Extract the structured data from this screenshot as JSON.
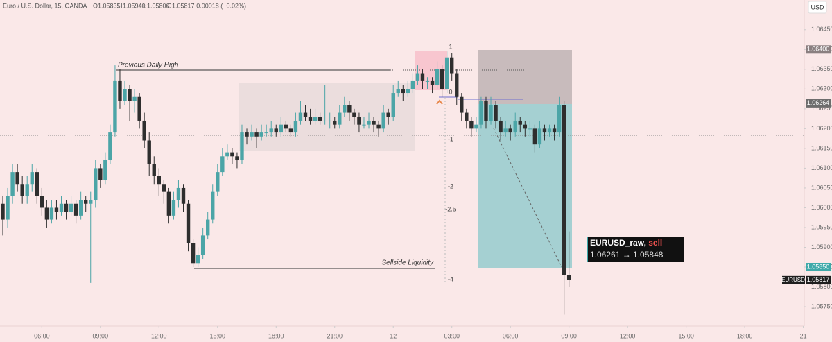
{
  "header": {
    "symbol": "Euro / U.S. Dollar, 15, OANDA",
    "o_label": "O",
    "o": "1.05835",
    "h_label": "H",
    "h": "1.05940",
    "l_label": "L",
    "l": "1.05806",
    "c_label": "C",
    "c": "1.05817",
    "change": "−0.00018 (−0.02%)",
    "currency": "USD"
  },
  "chart_data": {
    "type": "candlestick",
    "up_color": "#4ba5a7",
    "down_color": "#2e2e2e",
    "xlim": [
      -0.57,
      164.2
    ],
    "ylim": [
      1.05701,
      1.06525
    ],
    "xticks": [
      {
        "value": 8,
        "label": "06:00"
      },
      {
        "value": 20,
        "label": "09:00"
      },
      {
        "value": 32,
        "label": "12:00"
      },
      {
        "value": 44,
        "label": "15:00"
      },
      {
        "value": 56,
        "label": "18:00"
      },
      {
        "value": 68,
        "label": "21:00"
      },
      {
        "value": 80,
        "label": "12"
      },
      {
        "value": 92,
        "label": "03:00"
      },
      {
        "value": 104,
        "label": "06:00"
      },
      {
        "value": 116,
        "label": "09:00"
      },
      {
        "value": 128,
        "label": "12:00"
      },
      {
        "value": 140,
        "label": "15:00"
      },
      {
        "value": 152,
        "label": "18:00"
      },
      {
        "value": 164,
        "label": "21"
      }
    ],
    "yticks": [
      {
        "value": 1.0575,
        "label": "1.05750"
      },
      {
        "value": 1.058,
        "label": "1.05800"
      },
      {
        "value": 1.0585,
        "label": "1.05850"
      },
      {
        "value": 1.059,
        "label": "1.05900"
      },
      {
        "value": 1.0595,
        "label": "1.05950"
      },
      {
        "value": 1.06,
        "label": "1.06000"
      },
      {
        "value": 1.0605,
        "label": "1.06050"
      },
      {
        "value": 1.061,
        "label": "1.06100"
      },
      {
        "value": 1.0615,
        "label": "1.06150"
      },
      {
        "value": 1.062,
        "label": "1.06200"
      },
      {
        "value": 1.0625,
        "label": "1.06250"
      },
      {
        "value": 1.063,
        "label": "1.06300"
      },
      {
        "value": 1.0635,
        "label": "1.06350"
      },
      {
        "value": 1.064,
        "label": "1.06400"
      },
      {
        "value": 1.0645,
        "label": "1.06450"
      }
    ],
    "price_badges": [
      {
        "value": 1.064,
        "label": "1.06400",
        "color": "#8a7f80"
      },
      {
        "value": 1.06264,
        "label": "1.06264",
        "color": "#6d6d6d"
      },
      {
        "value": 1.0585,
        "label": "1.05850",
        "color": "#3fa9a9"
      },
      {
        "value": 1.05817,
        "label": "1.05817",
        "color": "#1e1e1e",
        "name": "EURUSD"
      }
    ],
    "annotations": {
      "prev_high": "Previous Daily High",
      "sellside": "Sellside Liquidity",
      "fib": [
        "1",
        "0",
        "-1",
        "-2",
        "-2.5",
        "-4"
      ],
      "trade_name": "EURUSD_raw, ",
      "trade_side": "sell",
      "trade_prices": "1.06261 → 1.05848"
    },
    "candles": [
      [
        1.0601,
        1.0603,
        1.0593,
        1.0597
      ],
      [
        1.0597,
        1.0605,
        1.0595,
        1.0603
      ],
      [
        1.0603,
        1.0611,
        1.0601,
        1.0609
      ],
      [
        1.0609,
        1.0611,
        1.0604,
        1.0606
      ],
      [
        1.0606,
        1.0608,
        1.0601,
        1.0603
      ],
      [
        1.0603,
        1.0608,
        1.0601,
        1.0606
      ],
      [
        1.0606,
        1.0611,
        1.0604,
        1.0609
      ],
      [
        1.0609,
        1.061,
        1.0601,
        1.0603
      ],
      [
        1.0603,
        1.0605,
        1.0598,
        1.06
      ],
      [
        1.06,
        1.0602,
        1.0595,
        1.0597
      ],
      [
        1.0597,
        1.0602,
        1.0596,
        1.06
      ],
      [
        1.06,
        1.0602,
        1.0597,
        1.0599
      ],
      [
        1.0599,
        1.0603,
        1.0598,
        1.0601
      ],
      [
        1.0601,
        1.0602,
        1.0597,
        1.0599
      ],
      [
        1.0599,
        1.0603,
        1.0598,
        1.0601
      ],
      [
        1.0601,
        1.0602,
        1.0596,
        1.0598
      ],
      [
        1.0598,
        1.0604,
        1.0597,
        1.0602
      ],
      [
        1.0602,
        1.0603,
        1.0599,
        1.0601
      ],
      [
        1.0601,
        1.0604,
        1.0581,
        1.0602
      ],
      [
        1.0602,
        1.0612,
        1.06,
        1.061
      ],
      [
        1.061,
        1.0611,
        1.0605,
        1.0607
      ],
      [
        1.0607,
        1.0614,
        1.0606,
        1.0612
      ],
      [
        1.0612,
        1.0621,
        1.0611,
        1.0619
      ],
      [
        1.0619,
        1.0636,
        1.0618,
        1.0632
      ],
      [
        1.0632,
        1.0635,
        1.0625,
        1.0627
      ],
      [
        1.0627,
        1.0632,
        1.0626,
        1.063
      ],
      [
        1.063,
        1.0631,
        1.0622,
        1.0627
      ],
      [
        1.0627,
        1.063,
        1.0624,
        1.0628
      ],
      [
        1.0628,
        1.0629,
        1.062,
        1.0622
      ],
      [
        1.0622,
        1.0624,
        1.0615,
        1.0617
      ],
      [
        1.0617,
        1.0619,
        1.0608,
        1.0611
      ],
      [
        1.0611,
        1.0613,
        1.0606,
        1.0608
      ],
      [
        1.0608,
        1.061,
        1.0603,
        1.0606
      ],
      [
        1.0606,
        1.0607,
        1.0601,
        1.0604
      ],
      [
        1.0604,
        1.0605,
        1.0596,
        1.0598
      ],
      [
        1.0598,
        1.0604,
        1.0597,
        1.0602
      ],
      [
        1.0602,
        1.0607,
        1.06,
        1.0605
      ],
      [
        1.0605,
        1.0606,
        1.0599,
        1.0601
      ],
      [
        1.0601,
        1.0602,
        1.0589,
        1.0591
      ],
      [
        1.0591,
        1.0592,
        1.0585,
        1.0586
      ],
      [
        1.0586,
        1.059,
        1.0585,
        1.0588
      ],
      [
        1.0588,
        1.0595,
        1.0587,
        1.0593
      ],
      [
        1.0593,
        1.0599,
        1.0592,
        1.0597
      ],
      [
        1.0597,
        1.0606,
        1.0596,
        1.0604
      ],
      [
        1.0604,
        1.0611,
        1.0603,
        1.0609
      ],
      [
        1.0609,
        1.0615,
        1.0608,
        1.0613
      ],
      [
        1.0613,
        1.0616,
        1.0612,
        1.0614
      ],
      [
        1.0614,
        1.0615,
        1.0611,
        1.0613
      ],
      [
        1.0613,
        1.0614,
        1.061,
        1.0612
      ],
      [
        1.0612,
        1.0621,
        1.0611,
        1.0619
      ],
      [
        1.0619,
        1.062,
        1.0616,
        1.0618
      ],
      [
        1.0618,
        1.0621,
        1.0617,
        1.0619
      ],
      [
        1.0619,
        1.062,
        1.0615,
        1.0618
      ],
      [
        1.0618,
        1.0621,
        1.0617,
        1.0619
      ],
      [
        1.0619,
        1.0621,
        1.0618,
        1.0619
      ],
      [
        1.0619,
        1.0622,
        1.0618,
        1.062
      ],
      [
        1.062,
        1.0621,
        1.0618,
        1.0619
      ],
      [
        1.0619,
        1.0623,
        1.0618,
        1.0621
      ],
      [
        1.0621,
        1.0622,
        1.0619,
        1.062
      ],
      [
        1.062,
        1.0621,
        1.0618,
        1.0619
      ],
      [
        1.0619,
        1.0624,
        1.0618,
        1.0622
      ],
      [
        1.0622,
        1.0627,
        1.0621,
        1.0624
      ],
      [
        1.0624,
        1.0626,
        1.0622,
        1.0623
      ],
      [
        1.0623,
        1.0625,
        1.0621,
        1.0622
      ],
      [
        1.0622,
        1.0625,
        1.0621,
        1.0623
      ],
      [
        1.0623,
        1.0624,
        1.0621,
        1.0622
      ],
      [
        1.0622,
        1.0631,
        1.0621,
        1.0622
      ],
      [
        1.0622,
        1.0624,
        1.062,
        1.0622
      ],
      [
        1.0622,
        1.0623,
        1.062,
        1.0621
      ],
      [
        1.0621,
        1.0626,
        1.062,
        1.0624
      ],
      [
        1.0624,
        1.0628,
        1.0623,
        1.0626
      ],
      [
        1.0626,
        1.0627,
        1.0622,
        1.0624
      ],
      [
        1.0624,
        1.0625,
        1.0621,
        1.0623
      ],
      [
        1.0623,
        1.0624,
        1.0619,
        1.0621
      ],
      [
        1.0621,
        1.0623,
        1.062,
        1.0621
      ],
      [
        1.0621,
        1.0624,
        1.062,
        1.0622
      ],
      [
        1.0622,
        1.0623,
        1.0619,
        1.0621
      ],
      [
        1.0621,
        1.0622,
        1.0618,
        1.062
      ],
      [
        1.062,
        1.0626,
        1.0619,
        1.0624
      ],
      [
        1.0624,
        1.0625,
        1.0621,
        1.0623
      ],
      [
        1.0623,
        1.0631,
        1.0622,
        1.0629
      ],
      [
        1.0629,
        1.0632,
        1.0628,
        1.063
      ],
      [
        1.063,
        1.0631,
        1.0627,
        1.0629
      ],
      [
        1.0629,
        1.0632,
        1.0628,
        1.063
      ],
      [
        1.063,
        1.0634,
        1.0629,
        1.0632
      ],
      [
        1.0632,
        1.0636,
        1.0631,
        1.0634
      ],
      [
        1.0634,
        1.0635,
        1.063,
        1.0632
      ],
      [
        1.0632,
        1.0633,
        1.063,
        1.0632
      ],
      [
        1.0632,
        1.0633,
        1.0629,
        1.0631
      ],
      [
        1.0631,
        1.0637,
        1.063,
        1.0635
      ],
      [
        1.0635,
        1.0636,
        1.0628,
        1.063
      ],
      [
        1.063,
        1.06395,
        1.0629,
        1.0638
      ],
      [
        1.0638,
        1.0639,
        1.0632,
        1.0634
      ],
      [
        1.0634,
        1.0635,
        1.0626,
        1.0628
      ],
      [
        1.0628,
        1.0629,
        1.0622,
        1.0624
      ],
      [
        1.0624,
        1.0625,
        1.062,
        1.0622
      ],
      [
        1.0622,
        1.0623,
        1.0618,
        1.062
      ],
      [
        1.062,
        1.0623,
        1.0619,
        1.0621
      ],
      [
        1.0621,
        1.0628,
        1.062,
        1.0627
      ],
      [
        1.0627,
        1.0628,
        1.062,
        1.0622
      ],
      [
        1.0622,
        1.0628,
        1.0621,
        1.0626
      ],
      [
        1.0626,
        1.0627,
        1.062,
        1.0622
      ],
      [
        1.0622,
        1.0623,
        1.0617,
        1.0619
      ],
      [
        1.0619,
        1.0622,
        1.0618,
        1.062
      ],
      [
        1.062,
        1.0621,
        1.0617,
        1.0619
      ],
      [
        1.0619,
        1.0624,
        1.0618,
        1.0622
      ],
      [
        1.0622,
        1.0623,
        1.0619,
        1.0621
      ],
      [
        1.0621,
        1.0622,
        1.0618,
        1.062
      ],
      [
        1.062,
        1.0622,
        1.0618,
        1.062
      ],
      [
        1.062,
        1.0621,
        1.0614,
        1.0616
      ],
      [
        1.0616,
        1.0622,
        1.0615,
        1.062
      ],
      [
        1.062,
        1.0621,
        1.0617,
        1.0619
      ],
      [
        1.0619,
        1.0621,
        1.0618,
        1.062
      ],
      [
        1.062,
        1.0621,
        1.0617,
        1.0619
      ],
      [
        1.0619,
        1.0628,
        1.0618,
        1.0626
      ],
      [
        1.0626,
        1.0627,
        1.0573,
        1.0583
      ],
      [
        1.0583,
        1.0594,
        1.058,
        1.05817
      ]
    ]
  }
}
